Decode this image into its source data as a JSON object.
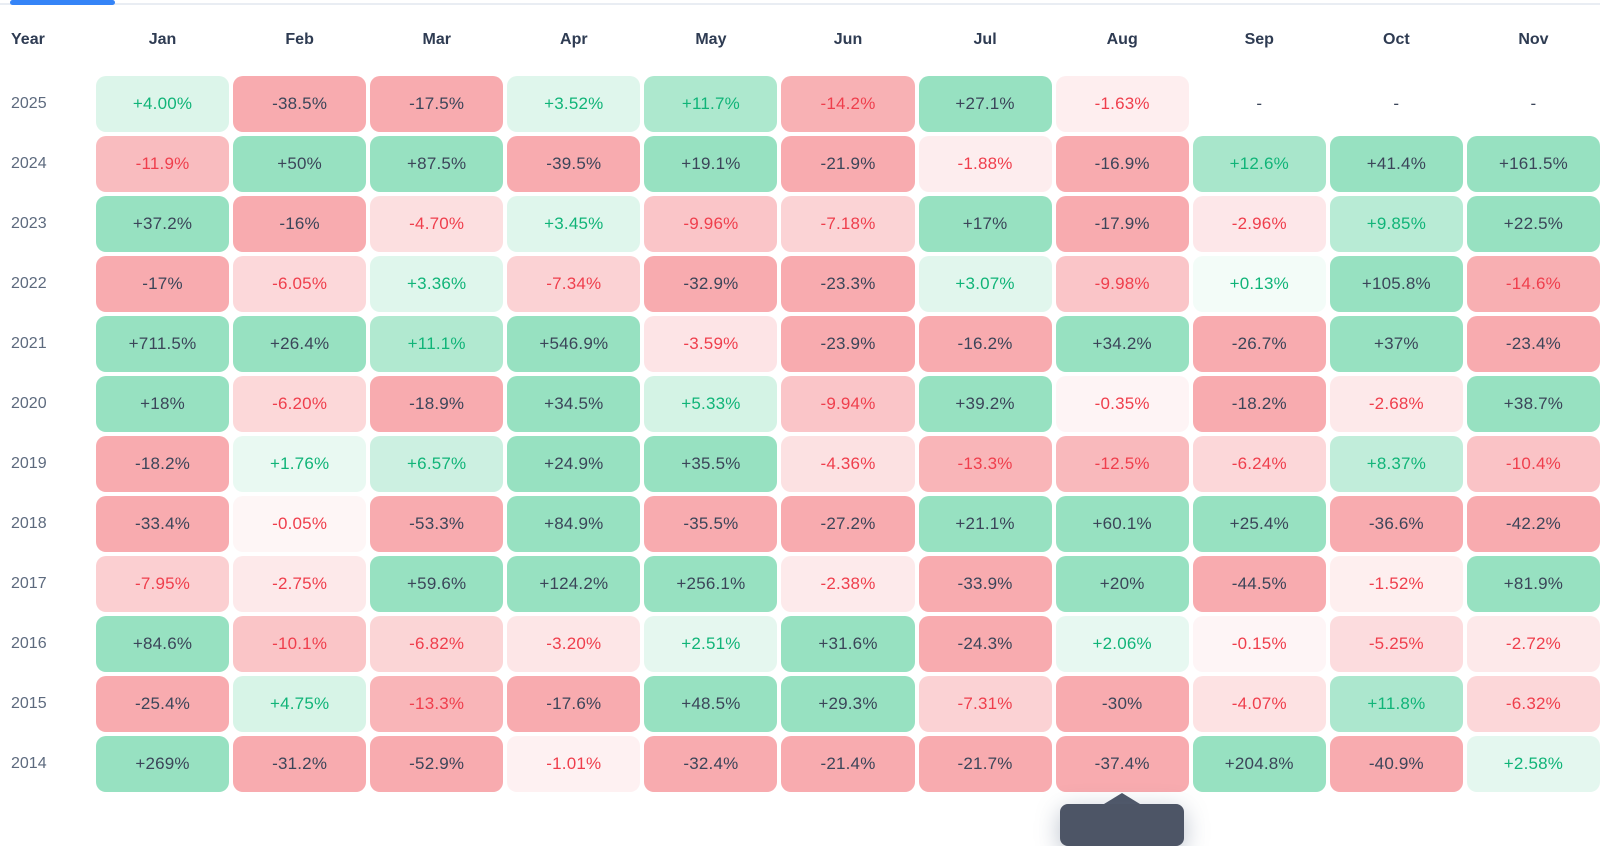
{
  "table": {
    "year_column_label": "Year",
    "months": [
      "Jan",
      "Feb",
      "Mar",
      "Apr",
      "May",
      "Jun",
      "Jul",
      "Aug",
      "Sep",
      "Oct",
      "Nov"
    ],
    "rows": [
      {
        "year": "2025",
        "returns": [
          "+4.00%",
          "-38.5%",
          "-17.5%",
          "+3.52%",
          "+11.7%",
          "-14.2%",
          "+27.1%",
          "-1.63%",
          "-",
          "-",
          "-"
        ]
      },
      {
        "year": "2024",
        "returns": [
          "-11.9%",
          "+50%",
          "+87.5%",
          "-39.5%",
          "+19.1%",
          "-21.9%",
          "-1.88%",
          "-16.9%",
          "+12.6%",
          "+41.4%",
          "+161.5%"
        ]
      },
      {
        "year": "2023",
        "returns": [
          "+37.2%",
          "-16%",
          "-4.70%",
          "+3.45%",
          "-9.96%",
          "-7.18%",
          "+17%",
          "-17.9%",
          "-2.96%",
          "+9.85%",
          "+22.5%"
        ]
      },
      {
        "year": "2022",
        "returns": [
          "-17%",
          "-6.05%",
          "+3.36%",
          "-7.34%",
          "-32.9%",
          "-23.3%",
          "+3.07%",
          "-9.98%",
          "+0.13%",
          "+105.8%",
          "-14.6%"
        ]
      },
      {
        "year": "2021",
        "returns": [
          "+711.5%",
          "+26.4%",
          "+11.1%",
          "+546.9%",
          "-3.59%",
          "-23.9%",
          "-16.2%",
          "+34.2%",
          "-26.7%",
          "+37%",
          "-23.4%"
        ]
      },
      {
        "year": "2020",
        "returns": [
          "+18%",
          "-6.20%",
          "-18.9%",
          "+34.5%",
          "+5.33%",
          "-9.94%",
          "+39.2%",
          "-0.35%",
          "-18.2%",
          "-2.68%",
          "+38.7%"
        ]
      },
      {
        "year": "2019",
        "returns": [
          "-18.2%",
          "+1.76%",
          "+6.57%",
          "+24.9%",
          "+35.5%",
          "-4.36%",
          "-13.3%",
          "-12.5%",
          "-6.24%",
          "+8.37%",
          "-10.4%"
        ]
      },
      {
        "year": "2018",
        "returns": [
          "-33.4%",
          "-0.05%",
          "-53.3%",
          "+84.9%",
          "-35.5%",
          "-27.2%",
          "+21.1%",
          "+60.1%",
          "+25.4%",
          "-36.6%",
          "-42.2%"
        ]
      },
      {
        "year": "2017",
        "returns": [
          "-7.95%",
          "-2.75%",
          "+59.6%",
          "+124.2%",
          "+256.1%",
          "-2.38%",
          "-33.9%",
          "+20%",
          "-44.5%",
          "-1.52%",
          "+81.9%"
        ]
      },
      {
        "year": "2016",
        "returns": [
          "+84.6%",
          "-10.1%",
          "-6.82%",
          "-3.20%",
          "+2.51%",
          "+31.6%",
          "-24.3%",
          "+2.06%",
          "-0.15%",
          "-5.25%",
          "-2.72%"
        ]
      },
      {
        "year": "2015",
        "returns": [
          "-25.4%",
          "+4.75%",
          "-13.3%",
          "-17.6%",
          "+48.5%",
          "+29.3%",
          "-7.31%",
          "-30%",
          "-4.07%",
          "+11.8%",
          "-6.32%"
        ]
      },
      {
        "year": "2014",
        "returns": [
          "+269%",
          "-31.2%",
          "-52.9%",
          "-1.01%",
          "-32.4%",
          "-21.4%",
          "-21.7%",
          "-37.4%",
          "+204.8%",
          "-40.9%",
          "+2.58%"
        ]
      }
    ]
  },
  "empty_value": "-",
  "tooltip": {
    "visible": true,
    "anchor_year": "2014",
    "anchor_month": "Aug"
  },
  "colors": {
    "positive_base": "#1fbf7a",
    "negative_base": "#f04a52",
    "positive_text": "#10b478",
    "negative_text": "#ef3e4c",
    "dark_text": "#3b4559",
    "header_text": "#2e3b52",
    "year_text": "#5d6a7e",
    "tab_indicator": "#3584f7",
    "divider": "#e9edf3",
    "tooltip_bg": "#4d5566"
  },
  "chart_data": {
    "type": "heatmap",
    "title": "Monthly returns by year (%)",
    "x_labels": [
      "Jan",
      "Feb",
      "Mar",
      "Apr",
      "May",
      "Jun",
      "Jul",
      "Aug",
      "Sep",
      "Oct",
      "Nov"
    ],
    "y_labels": [
      "2025",
      "2024",
      "2023",
      "2022",
      "2021",
      "2020",
      "2019",
      "2018",
      "2017",
      "2016",
      "2015",
      "2014"
    ],
    "value_format": "percent",
    "values": [
      [
        4.0,
        -38.5,
        -17.5,
        3.52,
        11.7,
        -14.2,
        27.1,
        -1.63,
        null,
        null,
        null
      ],
      [
        -11.9,
        50,
        87.5,
        -39.5,
        19.1,
        -21.9,
        -1.88,
        -16.9,
        12.6,
        41.4,
        161.5
      ],
      [
        37.2,
        -16,
        -4.7,
        3.45,
        -9.96,
        -7.18,
        17,
        -17.9,
        -2.96,
        9.85,
        22.5
      ],
      [
        -17,
        -6.05,
        3.36,
        -7.34,
        -32.9,
        -23.3,
        3.07,
        -9.98,
        0.13,
        105.8,
        -14.6
      ],
      [
        711.5,
        26.4,
        11.1,
        546.9,
        -3.59,
        -23.9,
        -16.2,
        34.2,
        -26.7,
        37,
        -23.4
      ],
      [
        18,
        -6.2,
        -18.9,
        34.5,
        5.33,
        -9.94,
        39.2,
        -0.35,
        -18.2,
        -2.68,
        38.7
      ],
      [
        -18.2,
        1.76,
        6.57,
        24.9,
        35.5,
        -4.36,
        -13.3,
        -12.5,
        -6.24,
        8.37,
        -10.4
      ],
      [
        -33.4,
        -0.05,
        -53.3,
        84.9,
        -35.5,
        -27.2,
        21.1,
        60.1,
        25.4,
        -36.6,
        -42.2
      ],
      [
        -7.95,
        -2.75,
        59.6,
        124.2,
        256.1,
        -2.38,
        -33.9,
        20,
        -44.5,
        -1.52,
        81.9
      ],
      [
        84.6,
        -10.1,
        -6.82,
        -3.2,
        2.51,
        31.6,
        -24.3,
        2.06,
        -0.15,
        -5.25,
        -2.72
      ],
      [
        -25.4,
        4.75,
        -13.3,
        -17.6,
        48.5,
        29.3,
        -7.31,
        -30,
        -4.07,
        11.8,
        -6.32
      ],
      [
        269,
        -31.2,
        -52.9,
        -1.01,
        -32.4,
        -21.4,
        -21.7,
        -37.4,
        204.8,
        -40.9,
        2.58
      ]
    ],
    "legend": "none",
    "grid": "off"
  }
}
